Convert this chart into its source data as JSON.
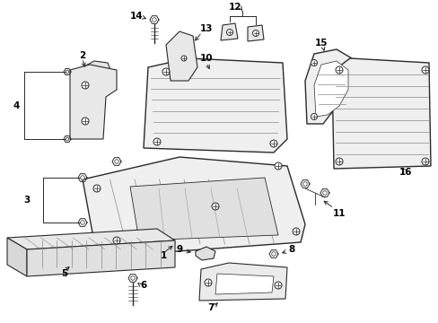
{
  "background_color": "#ffffff",
  "line_color": "#2a2a2a",
  "fig_width": 4.89,
  "fig_height": 3.6,
  "dpi": 100,
  "label_fontsize": 7.5
}
